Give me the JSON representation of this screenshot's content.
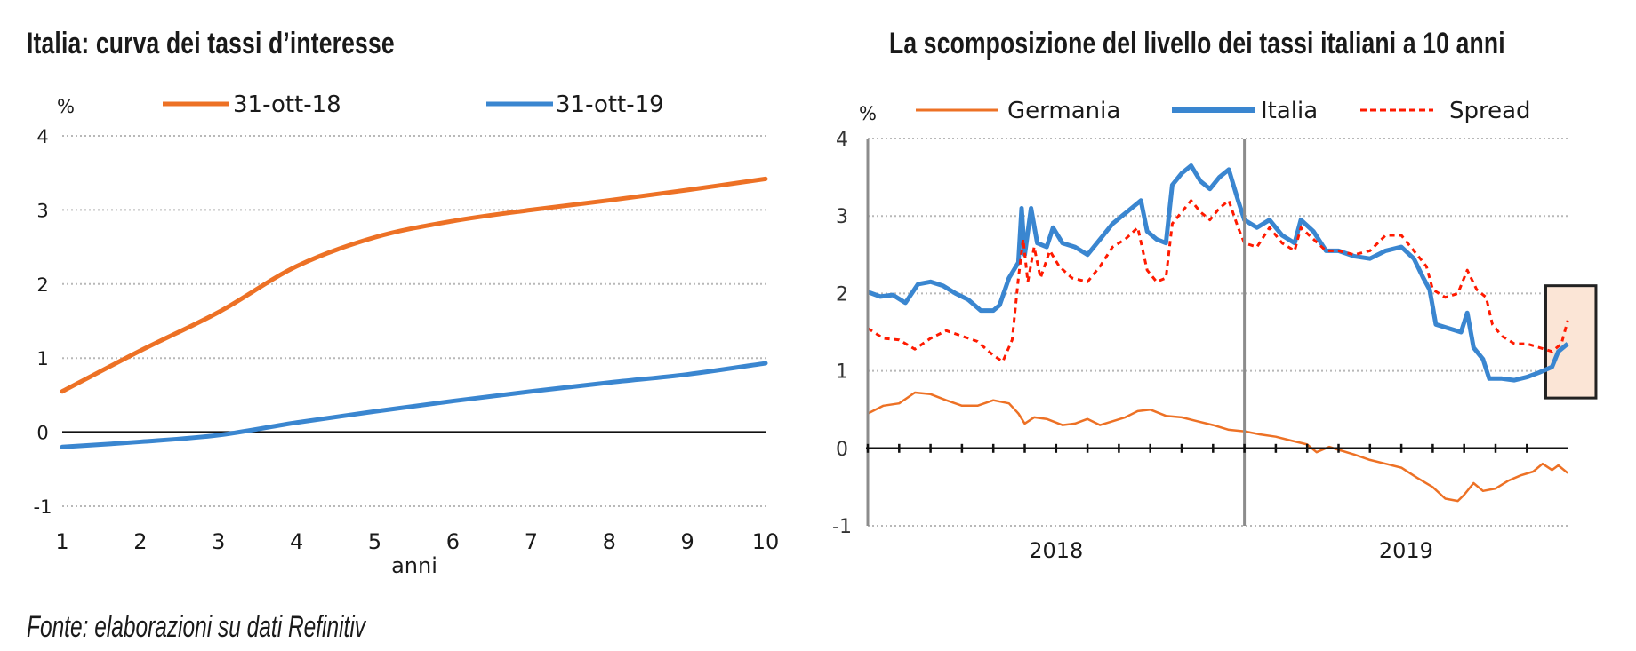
{
  "caption": "Fonte: elaborazioni su dati Refinitiv",
  "colors": {
    "orange": "#ed7125",
    "blue": "#3a86d0",
    "red": "#ff1a00",
    "highlight_fill": "#fbe5d6",
    "axis": "#111111",
    "grid": "#b8b8b8",
    "divider": "#8c8c8c"
  },
  "chart_data": [
    {
      "type": "line",
      "title": "Italia: curva dei tassi d’interesse",
      "xlabel": "anni",
      "ylabel": "%",
      "x": [
        1,
        2,
        3,
        4,
        5,
        6,
        7,
        8,
        9,
        10
      ],
      "xticks": [
        "1",
        "2",
        "3",
        "4",
        "5",
        "6",
        "7",
        "8",
        "9",
        "10"
      ],
      "xlim": [
        1,
        10
      ],
      "ylim": [
        -1,
        4
      ],
      "yticks": [
        "-1",
        "0",
        "1",
        "2",
        "3",
        "4"
      ],
      "grid": true,
      "legend_position": "top",
      "series": [
        {
          "name": "31-ott-18",
          "color": "orange",
          "values": [
            0.55,
            1.1,
            1.62,
            2.24,
            2.63,
            2.85,
            3.0,
            3.13,
            3.27,
            3.42
          ]
        },
        {
          "name": "31-ott-19",
          "color": "blue",
          "values": [
            -0.2,
            -0.13,
            -0.04,
            0.13,
            0.28,
            0.42,
            0.55,
            0.67,
            0.78,
            0.93
          ]
        }
      ]
    },
    {
      "type": "line",
      "title": "La scomposizione del livello dei tassi italiani a 10 anni",
      "xlabel": "",
      "ylabel": "%",
      "x_unit": "months since Jan 2018",
      "xlim": [
        0,
        22.3
      ],
      "xcategories": [
        "2018",
        "2019"
      ],
      "year_starts": [
        0,
        12
      ],
      "month_ticks": [
        0,
        1,
        2,
        3,
        4,
        5,
        6,
        7,
        8,
        9,
        10,
        11,
        12,
        13,
        14,
        15,
        16,
        17,
        18,
        19,
        20,
        21
      ],
      "ylim": [
        -1,
        4
      ],
      "yticks": [
        "-1",
        "0",
        "1",
        "2",
        "3",
        "4"
      ],
      "grid": true,
      "legend_position": "top",
      "highlight": {
        "x_range": [
          21.6,
          23.2
        ],
        "y_range": [
          0.65,
          2.1
        ]
      },
      "series": [
        {
          "name": "Germania",
          "color": "orange",
          "style": "solid-thin",
          "points": [
            [
              0,
              0.45
            ],
            [
              0.5,
              0.55
            ],
            [
              1.0,
              0.58
            ],
            [
              1.5,
              0.72
            ],
            [
              2.0,
              0.7
            ],
            [
              2.5,
              0.62
            ],
            [
              3.0,
              0.55
            ],
            [
              3.5,
              0.55
            ],
            [
              4.0,
              0.62
            ],
            [
              4.5,
              0.58
            ],
            [
              4.8,
              0.45
            ],
            [
              5.0,
              0.32
            ],
            [
              5.3,
              0.4
            ],
            [
              5.7,
              0.38
            ],
            [
              6.2,
              0.3
            ],
            [
              6.6,
              0.32
            ],
            [
              7.0,
              0.38
            ],
            [
              7.4,
              0.3
            ],
            [
              7.8,
              0.35
            ],
            [
              8.2,
              0.4
            ],
            [
              8.6,
              0.48
            ],
            [
              9.0,
              0.5
            ],
            [
              9.5,
              0.42
            ],
            [
              10.0,
              0.4
            ],
            [
              10.5,
              0.35
            ],
            [
              11.0,
              0.3
            ],
            [
              11.5,
              0.24
            ],
            [
              12.0,
              0.22
            ],
            [
              12.5,
              0.18
            ],
            [
              13.0,
              0.15
            ],
            [
              13.5,
              0.1
            ],
            [
              14.0,
              0.05
            ],
            [
              14.3,
              -0.05
            ],
            [
              14.7,
              0.02
            ],
            [
              15.0,
              -0.02
            ],
            [
              15.5,
              -0.08
            ],
            [
              16.0,
              -0.15
            ],
            [
              16.5,
              -0.2
            ],
            [
              17.0,
              -0.25
            ],
            [
              17.5,
              -0.38
            ],
            [
              18.0,
              -0.5
            ],
            [
              18.4,
              -0.65
            ],
            [
              18.8,
              -0.68
            ],
            [
              19.0,
              -0.6
            ],
            [
              19.3,
              -0.45
            ],
            [
              19.6,
              -0.55
            ],
            [
              20.0,
              -0.52
            ],
            [
              20.4,
              -0.42
            ],
            [
              20.8,
              -0.35
            ],
            [
              21.2,
              -0.3
            ],
            [
              21.5,
              -0.2
            ],
            [
              21.8,
              -0.28
            ],
            [
              22.0,
              -0.22
            ],
            [
              22.3,
              -0.32
            ]
          ]
        },
        {
          "name": "Italia",
          "color": "blue",
          "style": "solid-thick",
          "points": [
            [
              0,
              2.02
            ],
            [
              0.4,
              1.96
            ],
            [
              0.8,
              1.98
            ],
            [
              1.2,
              1.88
            ],
            [
              1.6,
              2.12
            ],
            [
              2.0,
              2.15
            ],
            [
              2.4,
              2.1
            ],
            [
              2.8,
              2.0
            ],
            [
              3.2,
              1.92
            ],
            [
              3.6,
              1.78
            ],
            [
              4.0,
              1.78
            ],
            [
              4.2,
              1.85
            ],
            [
              4.5,
              2.2
            ],
            [
              4.8,
              2.4
            ],
            [
              4.9,
              3.1
            ],
            [
              5.0,
              2.5
            ],
            [
              5.2,
              3.1
            ],
            [
              5.4,
              2.65
            ],
            [
              5.7,
              2.6
            ],
            [
              5.9,
              2.85
            ],
            [
              6.2,
              2.65
            ],
            [
              6.6,
              2.6
            ],
            [
              7.0,
              2.5
            ],
            [
              7.4,
              2.7
            ],
            [
              7.8,
              2.9
            ],
            [
              8.1,
              3.0
            ],
            [
              8.4,
              3.1
            ],
            [
              8.7,
              3.2
            ],
            [
              8.9,
              2.8
            ],
            [
              9.2,
              2.7
            ],
            [
              9.5,
              2.65
            ],
            [
              9.7,
              3.4
            ],
            [
              10.0,
              3.55
            ],
            [
              10.3,
              3.65
            ],
            [
              10.6,
              3.45
            ],
            [
              10.9,
              3.35
            ],
            [
              11.2,
              3.5
            ],
            [
              11.5,
              3.6
            ],
            [
              11.8,
              3.2
            ],
            [
              12.0,
              2.95
            ],
            [
              12.4,
              2.85
            ],
            [
              12.8,
              2.95
            ],
            [
              13.2,
              2.75
            ],
            [
              13.6,
              2.65
            ],
            [
              13.8,
              2.95
            ],
            [
              14.2,
              2.8
            ],
            [
              14.6,
              2.55
            ],
            [
              15.0,
              2.55
            ],
            [
              15.5,
              2.48
            ],
            [
              16.0,
              2.45
            ],
            [
              16.5,
              2.55
            ],
            [
              17.0,
              2.6
            ],
            [
              17.4,
              2.45
            ],
            [
              17.7,
              2.2
            ],
            [
              17.9,
              2.05
            ],
            [
              18.1,
              1.6
            ],
            [
              18.5,
              1.55
            ],
            [
              18.9,
              1.5
            ],
            [
              19.1,
              1.75
            ],
            [
              19.3,
              1.3
            ],
            [
              19.6,
              1.15
            ],
            [
              19.8,
              0.9
            ],
            [
              20.2,
              0.9
            ],
            [
              20.6,
              0.88
            ],
            [
              21.0,
              0.92
            ],
            [
              21.4,
              0.98
            ],
            [
              21.8,
              1.05
            ],
            [
              22.0,
              1.25
            ],
            [
              22.3,
              1.35
            ]
          ]
        },
        {
          "name": "Spread",
          "color": "red",
          "style": "dashed",
          "points": [
            [
              0,
              1.55
            ],
            [
              0.5,
              1.42
            ],
            [
              1.0,
              1.4
            ],
            [
              1.5,
              1.28
            ],
            [
              2.0,
              1.42
            ],
            [
              2.5,
              1.52
            ],
            [
              3.0,
              1.45
            ],
            [
              3.5,
              1.38
            ],
            [
              4.0,
              1.2
            ],
            [
              4.3,
              1.12
            ],
            [
              4.6,
              1.4
            ],
            [
              4.8,
              2.2
            ],
            [
              4.95,
              2.7
            ],
            [
              5.1,
              2.15
            ],
            [
              5.3,
              2.6
            ],
            [
              5.5,
              2.2
            ],
            [
              5.8,
              2.55
            ],
            [
              6.1,
              2.35
            ],
            [
              6.5,
              2.2
            ],
            [
              7.0,
              2.15
            ],
            [
              7.4,
              2.35
            ],
            [
              7.8,
              2.6
            ],
            [
              8.2,
              2.7
            ],
            [
              8.6,
              2.85
            ],
            [
              8.9,
              2.3
            ],
            [
              9.2,
              2.15
            ],
            [
              9.5,
              2.2
            ],
            [
              9.7,
              2.9
            ],
            [
              10.0,
              3.05
            ],
            [
              10.3,
              3.2
            ],
            [
              10.6,
              3.05
            ],
            [
              10.9,
              2.95
            ],
            [
              11.2,
              3.1
            ],
            [
              11.5,
              3.2
            ],
            [
              11.8,
              2.85
            ],
            [
              12.0,
              2.65
            ],
            [
              12.4,
              2.6
            ],
            [
              12.8,
              2.85
            ],
            [
              13.2,
              2.65
            ],
            [
              13.6,
              2.55
            ],
            [
              13.8,
              2.85
            ],
            [
              14.2,
              2.7
            ],
            [
              14.6,
              2.55
            ],
            [
              15.0,
              2.55
            ],
            [
              15.5,
              2.5
            ],
            [
              16.0,
              2.55
            ],
            [
              16.5,
              2.75
            ],
            [
              17.0,
              2.75
            ],
            [
              17.4,
              2.55
            ],
            [
              17.8,
              2.35
            ],
            [
              18.0,
              2.05
            ],
            [
              18.4,
              1.95
            ],
            [
              18.8,
              2.0
            ],
            [
              19.1,
              2.3
            ],
            [
              19.4,
              2.05
            ],
            [
              19.7,
              1.95
            ],
            [
              19.9,
              1.6
            ],
            [
              20.2,
              1.45
            ],
            [
              20.6,
              1.35
            ],
            [
              21.0,
              1.35
            ],
            [
              21.4,
              1.3
            ],
            [
              21.8,
              1.25
            ],
            [
              22.1,
              1.35
            ],
            [
              22.3,
              1.65
            ]
          ]
        }
      ]
    }
  ]
}
